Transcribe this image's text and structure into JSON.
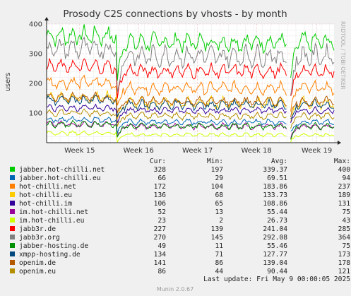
{
  "chart_data": {
    "type": "line",
    "title": "Prosody C2S connections by vhosts - by month",
    "ylabel": "users",
    "ylim": [
      0,
      400
    ],
    "y_ticks": [
      100,
      200,
      300,
      400
    ],
    "x_ticks": [
      "Week 15",
      "Week 16",
      "Week 17",
      "Week 18",
      "Week 19"
    ],
    "x_tick_fractions": [
      0.115,
      0.32,
      0.525,
      0.73,
      0.94
    ],
    "grid": true,
    "legend_placement": "bottom",
    "columns": [
      "Cur:",
      "Min:",
      "Avg:",
      "Max:"
    ],
    "series": [
      {
        "name": "jabber.hot-chilli.net",
        "color": "#00cc00",
        "cur": "328",
        "min": "197",
        "avg": "339.37",
        "max": "400"
      },
      {
        "name": "jabber.hot-chilli.eu",
        "color": "#0066b3",
        "cur": "66",
        "min": "29",
        "avg": "69.51",
        "max": "94"
      },
      {
        "name": "hot-chilli.net",
        "color": "#ff8000",
        "cur": "172",
        "min": "104",
        "avg": "183.86",
        "max": "237"
      },
      {
        "name": "hot-chilli.eu",
        "color": "#ffcc00",
        "cur": "136",
        "min": "68",
        "avg": "133.73",
        "max": "189"
      },
      {
        "name": "hot-chilli.im",
        "color": "#330099",
        "cur": "106",
        "min": "65",
        "avg": "108.86",
        "max": "131"
      },
      {
        "name": "im.hot-chilli.net",
        "color": "#990099",
        "cur": "52",
        "min": "13",
        "avg": "55.44",
        "max": "75"
      },
      {
        "name": "im.hot-chilli.eu",
        "color": "#ccff00",
        "cur": "23",
        "min": "2",
        "avg": "26.73",
        "max": "43"
      },
      {
        "name": "jabb3r.de",
        "color": "#ff0000",
        "cur": "227",
        "min": "139",
        "avg": "241.04",
        "max": "285"
      },
      {
        "name": "jabb3r.org",
        "color": "#808080",
        "cur": "270",
        "min": "145",
        "avg": "292.08",
        "max": "364"
      },
      {
        "name": "jabber-hosting.de",
        "color": "#008f00",
        "cur": "49",
        "min": "11",
        "avg": "55.46",
        "max": "75"
      },
      {
        "name": "xmpp-hosting.de",
        "color": "#00487d",
        "cur": "134",
        "min": "71",
        "avg": "127.77",
        "max": "173"
      },
      {
        "name": "openim.de",
        "color": "#b35a00",
        "cur": "141",
        "min": "86",
        "avg": "139.04",
        "max": "178"
      },
      {
        "name": "openim.eu",
        "color": "#b38f00",
        "cur": "86",
        "min": "44",
        "avg": "90.44",
        "max": "121"
      }
    ]
  },
  "last_update": "Last update: Fri May  9 00:00:05 2025",
  "side_label": "RRDTOOL / TOBI OETIKER",
  "footer": "Munin 2.0.67"
}
